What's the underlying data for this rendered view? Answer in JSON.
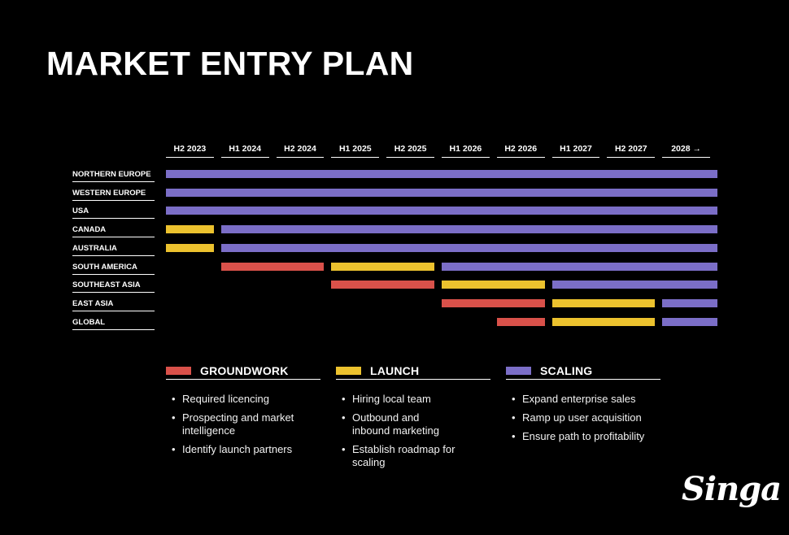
{
  "title": "MARKET ENTRY PLAN",
  "colors": {
    "groundwork": "#d9514a",
    "launch": "#ecc22e",
    "scaling": "#7b6ec7"
  },
  "chart_data": {
    "type": "gantt",
    "periods": [
      "H2 2023",
      "H1 2024",
      "H2 2024",
      "H1 2025",
      "H2 2025",
      "H1 2026",
      "H2 2026",
      "H1 2027",
      "H2 2027",
      "2028 →"
    ],
    "regions": [
      {
        "name": "NORTHERN EUROPE",
        "segments": [
          {
            "phase": "scaling",
            "start": 0,
            "end": 10
          }
        ]
      },
      {
        "name": "WESTERN EUROPE",
        "segments": [
          {
            "phase": "scaling",
            "start": 0,
            "end": 10
          }
        ]
      },
      {
        "name": "USA",
        "segments": [
          {
            "phase": "scaling",
            "start": 0,
            "end": 10
          }
        ]
      },
      {
        "name": "CANADA",
        "segments": [
          {
            "phase": "launch",
            "start": 0,
            "end": 1
          },
          {
            "phase": "scaling",
            "start": 1,
            "end": 10
          }
        ]
      },
      {
        "name": "AUSTRALIA",
        "segments": [
          {
            "phase": "launch",
            "start": 0,
            "end": 1
          },
          {
            "phase": "scaling",
            "start": 1,
            "end": 10
          }
        ]
      },
      {
        "name": "SOUTH AMERICA",
        "segments": [
          {
            "phase": "groundwork",
            "start": 1,
            "end": 3
          },
          {
            "phase": "launch",
            "start": 3,
            "end": 5
          },
          {
            "phase": "scaling",
            "start": 5,
            "end": 10
          }
        ]
      },
      {
        "name": "SOUTHEAST ASIA",
        "segments": [
          {
            "phase": "groundwork",
            "start": 3,
            "end": 5
          },
          {
            "phase": "launch",
            "start": 5,
            "end": 7
          },
          {
            "phase": "scaling",
            "start": 7,
            "end": 10
          }
        ]
      },
      {
        "name": "EAST ASIA",
        "segments": [
          {
            "phase": "groundwork",
            "start": 5,
            "end": 7
          },
          {
            "phase": "launch",
            "start": 7,
            "end": 9
          },
          {
            "phase": "scaling",
            "start": 9,
            "end": 10
          }
        ]
      },
      {
        "name": "GLOBAL",
        "segments": [
          {
            "phase": "groundwork",
            "start": 6,
            "end": 7
          },
          {
            "phase": "launch",
            "start": 7,
            "end": 9
          },
          {
            "phase": "scaling",
            "start": 9,
            "end": 10
          }
        ]
      }
    ]
  },
  "legend": [
    {
      "key": "groundwork",
      "label": "GROUNDWORK",
      "items": [
        "Required licencing",
        "Prospecting and market intelligence",
        "Identify launch partners"
      ]
    },
    {
      "key": "launch",
      "label": "LAUNCH",
      "items": [
        "Hiring local team",
        "Outbound and inbound marketing",
        "Establish roadmap for scaling"
      ]
    },
    {
      "key": "scaling",
      "label": "SCALING",
      "items": [
        "Expand enterprise sales",
        "Ramp up user acquisition",
        "Ensure path to profitability"
      ]
    }
  ],
  "logo": "Singa"
}
